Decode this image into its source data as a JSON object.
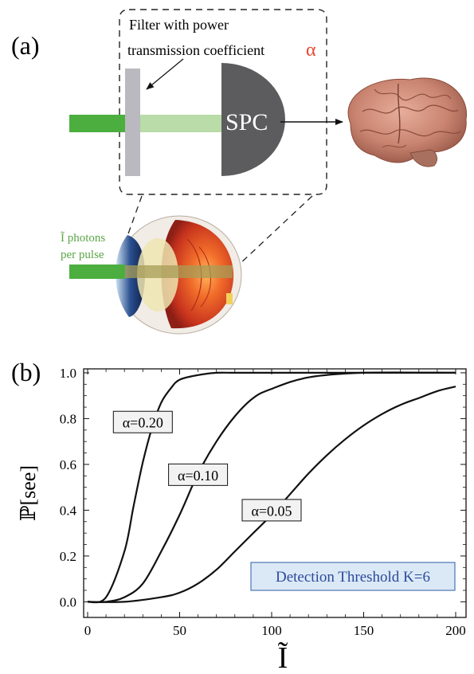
{
  "panel_a": {
    "label": "(a)",
    "filter_caption_line1": "Filter with power",
    "filter_caption_line2": "transmission coefficient",
    "alpha_symbol": "α",
    "detector_label": "SPC",
    "photons_line1": "Ĩ photons",
    "photons_line2": "per pulse",
    "colors": {
      "beam_strong": "#4cae3f",
      "beam_weak": "#b9dca8",
      "filter": "#b9b9bf",
      "detector": "#5c5c5f",
      "alpha_accent": "#e8452d",
      "photons_text": "#5aa646"
    }
  },
  "panel_b": {
    "label": "(b)",
    "annotation": "Detection Threshold K=6",
    "annotation_colors": {
      "text": "#2c4a9a",
      "fill": "#dbe9f7",
      "border": "#4a76b3"
    }
  },
  "chart_data": {
    "type": "line",
    "xlabel": "Ĩ",
    "ylabel": "ℙ[see]",
    "xlim": [
      0,
      200
    ],
    "ylim": [
      0,
      1.0
    ],
    "x_ticks": [
      0,
      50,
      100,
      150,
      200
    ],
    "y_ticks": [
      0.0,
      0.2,
      0.4,
      0.6,
      0.8,
      1.0
    ],
    "x_tick_labels": [
      "0",
      "50",
      "100",
      "150",
      "200"
    ],
    "y_tick_labels": [
      "0.0",
      "0.2",
      "0.4",
      "0.6",
      "0.8",
      "1.0"
    ],
    "grid": false,
    "series": [
      {
        "name": "α=0.20",
        "x": [
          0,
          10,
          20,
          25,
          30,
          35,
          40,
          45,
          50,
          60,
          70,
          80,
          100,
          150,
          200
        ],
        "y": [
          0.0,
          0.02,
          0.22,
          0.42,
          0.61,
          0.76,
          0.87,
          0.93,
          0.97,
          0.99,
          1.0,
          1.0,
          1.0,
          1.0,
          1.0
        ]
      },
      {
        "name": "α=0.10",
        "x": [
          0,
          10,
          20,
          30,
          40,
          50,
          60,
          70,
          80,
          90,
          100,
          120,
          150,
          200
        ],
        "y": [
          0.0,
          0.0,
          0.02,
          0.08,
          0.22,
          0.38,
          0.56,
          0.7,
          0.81,
          0.89,
          0.93,
          0.98,
          1.0,
          1.0
        ]
      },
      {
        "name": "α=0.05",
        "x": [
          0,
          20,
          40,
          50,
          60,
          70,
          80,
          90,
          100,
          110,
          120,
          130,
          140,
          150,
          160,
          170,
          180,
          190,
          200
        ],
        "y": [
          0.0,
          0.0,
          0.02,
          0.04,
          0.08,
          0.14,
          0.22,
          0.3,
          0.38,
          0.47,
          0.56,
          0.64,
          0.71,
          0.77,
          0.82,
          0.86,
          0.89,
          0.92,
          0.94
        ]
      }
    ]
  }
}
